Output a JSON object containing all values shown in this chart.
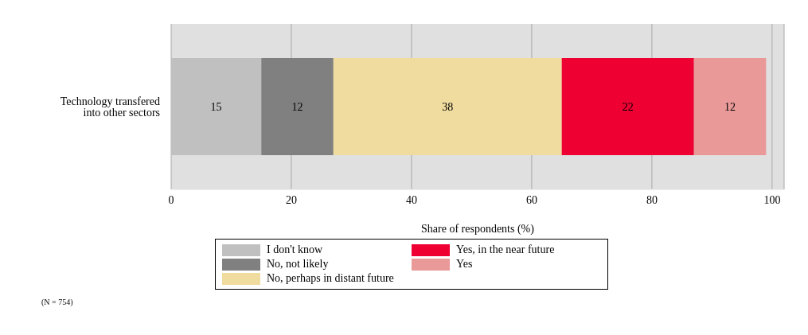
{
  "chart_data": {
    "type": "bar",
    "orientation": "horizontal",
    "stacked": true,
    "categories": [
      "Technology transfered into other sectors"
    ],
    "series": [
      {
        "name": "I don't know",
        "color": "#c0c0c0",
        "values": [
          15
        ]
      },
      {
        "name": "No, not likely",
        "color": "#808080",
        "values": [
          12
        ]
      },
      {
        "name": "No, perhaps in distant future",
        "color": "#f0dc9e",
        "values": [
          38
        ]
      },
      {
        "name": "Yes, in the near future",
        "color": "#ee0033",
        "values": [
          22
        ]
      },
      {
        "name": "Yes",
        "color": "#ea9999",
        "values": [
          12
        ]
      }
    ],
    "xlabel": "Share of respondents (%)",
    "xlim": [
      0,
      102
    ],
    "xticks": [
      0,
      20,
      40,
      60,
      80,
      100
    ],
    "grid": "x",
    "data_labels": true,
    "legend": "bottom",
    "annotations": [
      "(N = 754)"
    ]
  }
}
